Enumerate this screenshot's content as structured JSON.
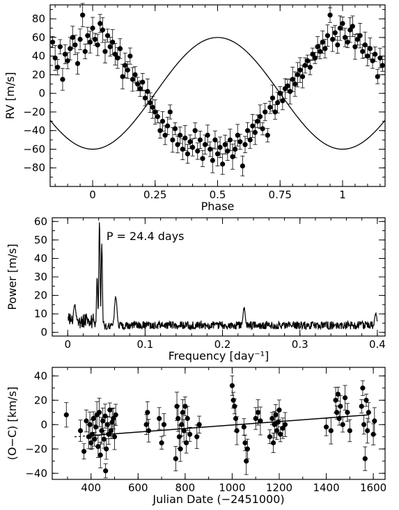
{
  "chart_data": [
    {
      "type": "scatter",
      "xlabel": "Phase",
      "ylabel": "RV [m/s]",
      "xlim": [
        -0.17,
        1.17
      ],
      "ylim": [
        -100,
        95
      ],
      "xticks": [
        0,
        0.25,
        0.5,
        0.75,
        1
      ],
      "xtick_labels": [
        "0",
        "0.25",
        "0.5",
        "0.75",
        "1"
      ],
      "yticks": [
        -80,
        -60,
        -40,
        -20,
        0,
        20,
        40,
        60,
        80
      ],
      "ytick_labels": [
        "−80",
        "−60",
        "−40",
        "−20",
        "0",
        "20",
        "40",
        "60",
        "80"
      ],
      "model_curve": {
        "function": "sinusoid",
        "period_phase": 1,
        "mean": 0,
        "amplitude": 60,
        "phase_of_minimum": 0.5
      },
      "series": [
        {
          "points": [
            [
              -0.16,
              55
            ],
            [
              -0.15,
              38
            ],
            [
              -0.14,
              28
            ],
            [
              -0.13,
              50
            ],
            [
              -0.12,
              15
            ],
            [
              -0.11,
              42
            ],
            [
              -0.1,
              35
            ],
            [
              -0.09,
              48
            ],
            [
              -0.08,
              60
            ],
            [
              -0.07,
              52
            ],
            [
              -0.06,
              32
            ],
            [
              -0.05,
              58
            ],
            [
              -0.04,
              84
            ],
            [
              -0.03,
              45
            ],
            [
              -0.02,
              62
            ],
            [
              -0.01,
              55
            ],
            [
              0.0,
              70
            ],
            [
              0.01,
              58
            ],
            [
              0.02,
              52
            ],
            [
              0.03,
              75
            ],
            [
              0.04,
              68
            ],
            [
              0.05,
              45
            ],
            [
              0.06,
              62
            ],
            [
              0.07,
              50
            ],
            [
              0.08,
              55
            ],
            [
              0.09,
              42
            ],
            [
              0.1,
              38
            ],
            [
              0.11,
              48
            ],
            [
              0.12,
              18
            ],
            [
              0.13,
              30
            ],
            [
              0.14,
              25
            ],
            [
              0.15,
              40
            ],
            [
              0.16,
              15
            ],
            [
              0.17,
              20
            ],
            [
              0.18,
              10
            ],
            [
              0.19,
              5
            ],
            [
              0.2,
              12
            ],
            [
              0.21,
              -5
            ],
            [
              0.22,
              2
            ],
            [
              0.23,
              -10
            ],
            [
              0.24,
              -15
            ],
            [
              0.25,
              -20
            ],
            [
              0.26,
              -25
            ],
            [
              0.27,
              -40
            ],
            [
              0.28,
              -30
            ],
            [
              0.29,
              -45
            ],
            [
              0.3,
              -35
            ],
            [
              0.31,
              -20
            ],
            [
              0.32,
              -50
            ],
            [
              0.33,
              -38
            ],
            [
              0.34,
              -55
            ],
            [
              0.35,
              -45
            ],
            [
              0.36,
              -60
            ],
            [
              0.37,
              -48
            ],
            [
              0.38,
              -65
            ],
            [
              0.39,
              -52
            ],
            [
              0.4,
              -58
            ],
            [
              0.41,
              -40
            ],
            [
              0.42,
              -62
            ],
            [
              0.43,
              -50
            ],
            [
              0.44,
              -70
            ],
            [
              0.45,
              -55
            ],
            [
              0.46,
              -45
            ],
            [
              0.47,
              -60
            ],
            [
              0.48,
              -72
            ],
            [
              0.49,
              -50
            ],
            [
              0.5,
              -65
            ],
            [
              0.51,
              -58
            ],
            [
              0.52,
              -76
            ],
            [
              0.53,
              -55
            ],
            [
              0.54,
              -62
            ],
            [
              0.55,
              -50
            ],
            [
              0.56,
              -68
            ],
            [
              0.57,
              -60
            ],
            [
              0.58,
              -45
            ],
            [
              0.59,
              -52
            ],
            [
              0.6,
              -78
            ],
            [
              0.61,
              -55
            ],
            [
              0.62,
              -40
            ],
            [
              0.63,
              -50
            ],
            [
              0.64,
              -35
            ],
            [
              0.65,
              -42
            ],
            [
              0.66,
              -30
            ],
            [
              0.67,
              -25
            ],
            [
              0.68,
              -38
            ],
            [
              0.69,
              -20
            ],
            [
              0.7,
              -45
            ],
            [
              0.71,
              -15
            ],
            [
              0.72,
              -5
            ],
            [
              0.73,
              -20
            ],
            [
              0.74,
              -10
            ],
            [
              0.75,
              0
            ],
            [
              0.76,
              -8
            ],
            [
              0.77,
              5
            ],
            [
              0.78,
              8
            ],
            [
              0.79,
              2
            ],
            [
              0.8,
              15
            ],
            [
              0.81,
              10
            ],
            [
              0.82,
              20
            ],
            [
              0.83,
              25
            ],
            [
              0.84,
              18
            ],
            [
              0.85,
              30
            ],
            [
              0.86,
              35
            ],
            [
              0.87,
              28
            ],
            [
              0.88,
              42
            ],
            [
              0.89,
              38
            ],
            [
              0.9,
              50
            ],
            [
              0.91,
              45
            ],
            [
              0.92,
              55
            ],
            [
              0.93,
              48
            ],
            [
              0.94,
              62
            ],
            [
              0.95,
              84
            ],
            [
              0.96,
              58
            ],
            [
              0.97,
              65
            ],
            [
              0.98,
              52
            ],
            [
              0.99,
              70
            ],
            [
              1.0,
              75
            ],
            [
              1.01,
              60
            ],
            [
              1.02,
              55
            ],
            [
              1.03,
              68
            ],
            [
              1.04,
              72
            ],
            [
              1.05,
              50
            ],
            [
              1.06,
              58
            ],
            [
              1.07,
              62
            ],
            [
              1.08,
              45
            ],
            [
              1.09,
              52
            ],
            [
              1.1,
              40
            ],
            [
              1.11,
              48
            ],
            [
              1.12,
              35
            ],
            [
              1.13,
              42
            ],
            [
              1.14,
              18
            ],
            [
              1.15,
              38
            ],
            [
              1.16,
              30
            ]
          ]
        }
      ]
    },
    {
      "type": "line",
      "xlabel": "Frequency [day⁻¹]",
      "ylabel": "Power [m/s]",
      "xlim": [
        -0.02,
        0.41
      ],
      "ylim": [
        -2,
        62
      ],
      "xticks": [
        0,
        0.1,
        0.2,
        0.3,
        0.4
      ],
      "xtick_labels": [
        "0",
        "0.1",
        "0.2",
        "0.3",
        "0.4"
      ],
      "yticks": [
        0,
        10,
        20,
        30,
        40,
        50,
        60
      ],
      "ytick_labels": [
        "0",
        "10",
        "20",
        "30",
        "40",
        "50",
        "60"
      ],
      "annotation": "P = 24.4 days",
      "peaks": [
        {
          "x": 0.041,
          "y": 60
        },
        {
          "x": 0.044,
          "y": 48
        },
        {
          "x": 0.038,
          "y": 30
        },
        {
          "x": 0.062,
          "y": 18
        },
        {
          "x": 0.009,
          "y": 14
        },
        {
          "x": 0.228,
          "y": 12
        },
        {
          "x": 0.398,
          "y": 9
        }
      ],
      "baseline_level": 5
    },
    {
      "type": "scatter",
      "xlabel": "Julian Date (−2451000)",
      "ylabel": "(O−C) [km/s]",
      "xlim": [
        235,
        1650
      ],
      "ylim": [
        -45,
        47
      ],
      "xticks": [
        400,
        600,
        800,
        1000,
        1200,
        1400,
        1600
      ],
      "xtick_labels": [
        "400",
        "600",
        "800",
        "1000",
        "1200",
        "1400",
        "1600"
      ],
      "yticks": [
        -40,
        -20,
        0,
        20,
        40
      ],
      "ytick_labels": [
        "−40",
        "−20",
        "0",
        "20",
        "40"
      ],
      "trend_line": {
        "x": [
          330,
          1580
        ],
        "y": [
          -10,
          8
        ],
        "dashed_until_x": 390
      },
      "series": [
        {
          "points": [
            [
              295,
              8
            ],
            [
              355,
              -5
            ],
            [
              370,
              -22
            ],
            [
              380,
              3
            ],
            [
              390,
              -10
            ],
            [
              395,
              0
            ],
            [
              400,
              -15
            ],
            [
              405,
              -8
            ],
            [
              410,
              5
            ],
            [
              415,
              -12
            ],
            [
              420,
              -2
            ],
            [
              425,
              8
            ],
            [
              430,
              -18
            ],
            [
              435,
              10
            ],
            [
              440,
              -25
            ],
            [
              445,
              -5
            ],
            [
              450,
              3
            ],
            [
              455,
              -12
            ],
            [
              460,
              7
            ],
            [
              462,
              -38
            ],
            [
              465,
              -20
            ],
            [
              470,
              0
            ],
            [
              475,
              -8
            ],
            [
              480,
              12
            ],
            [
              485,
              -5
            ],
            [
              490,
              2
            ],
            [
              495,
              5
            ],
            [
              500,
              -10
            ],
            [
              505,
              8
            ],
            [
              635,
              0
            ],
            [
              640,
              10
            ],
            [
              645,
              -5
            ],
            [
              690,
              5
            ],
            [
              700,
              -15
            ],
            [
              710,
              0
            ],
            [
              760,
              -28
            ],
            [
              765,
              15
            ],
            [
              770,
              5
            ],
            [
              775,
              -10
            ],
            [
              780,
              -20
            ],
            [
              785,
              0
            ],
            [
              790,
              10
            ],
            [
              795,
              -5
            ],
            [
              800,
              15
            ],
            [
              805,
              -15
            ],
            [
              810,
              5
            ],
            [
              820,
              -8
            ],
            [
              850,
              -10
            ],
            [
              860,
              0
            ],
            [
              1000,
              32
            ],
            [
              1005,
              20
            ],
            [
              1010,
              15
            ],
            [
              1015,
              5
            ],
            [
              1020,
              -5
            ],
            [
              1050,
              -2
            ],
            [
              1055,
              -15
            ],
            [
              1060,
              -30
            ],
            [
              1065,
              -20
            ],
            [
              1100,
              5
            ],
            [
              1110,
              10
            ],
            [
              1120,
              3
            ],
            [
              1160,
              -10
            ],
            [
              1170,
              5
            ],
            [
              1175,
              -15
            ],
            [
              1180,
              0
            ],
            [
              1185,
              8
            ],
            [
              1190,
              -5
            ],
            [
              1195,
              2
            ],
            [
              1200,
              12
            ],
            [
              1205,
              -8
            ],
            [
              1215,
              -3
            ],
            [
              1225,
              0
            ],
            [
              1400,
              -2
            ],
            [
              1420,
              -5
            ],
            [
              1440,
              20
            ],
            [
              1445,
              10
            ],
            [
              1450,
              25
            ],
            [
              1455,
              5
            ],
            [
              1460,
              15
            ],
            [
              1470,
              0
            ],
            [
              1480,
              22
            ],
            [
              1490,
              10
            ],
            [
              1500,
              -5
            ],
            [
              1550,
              15
            ],
            [
              1555,
              30
            ],
            [
              1560,
              0
            ],
            [
              1565,
              -28
            ],
            [
              1570,
              20
            ],
            [
              1575,
              -5
            ],
            [
              1580,
              10
            ],
            [
              1600,
              -8
            ],
            [
              1605,
              3
            ]
          ]
        }
      ]
    }
  ]
}
